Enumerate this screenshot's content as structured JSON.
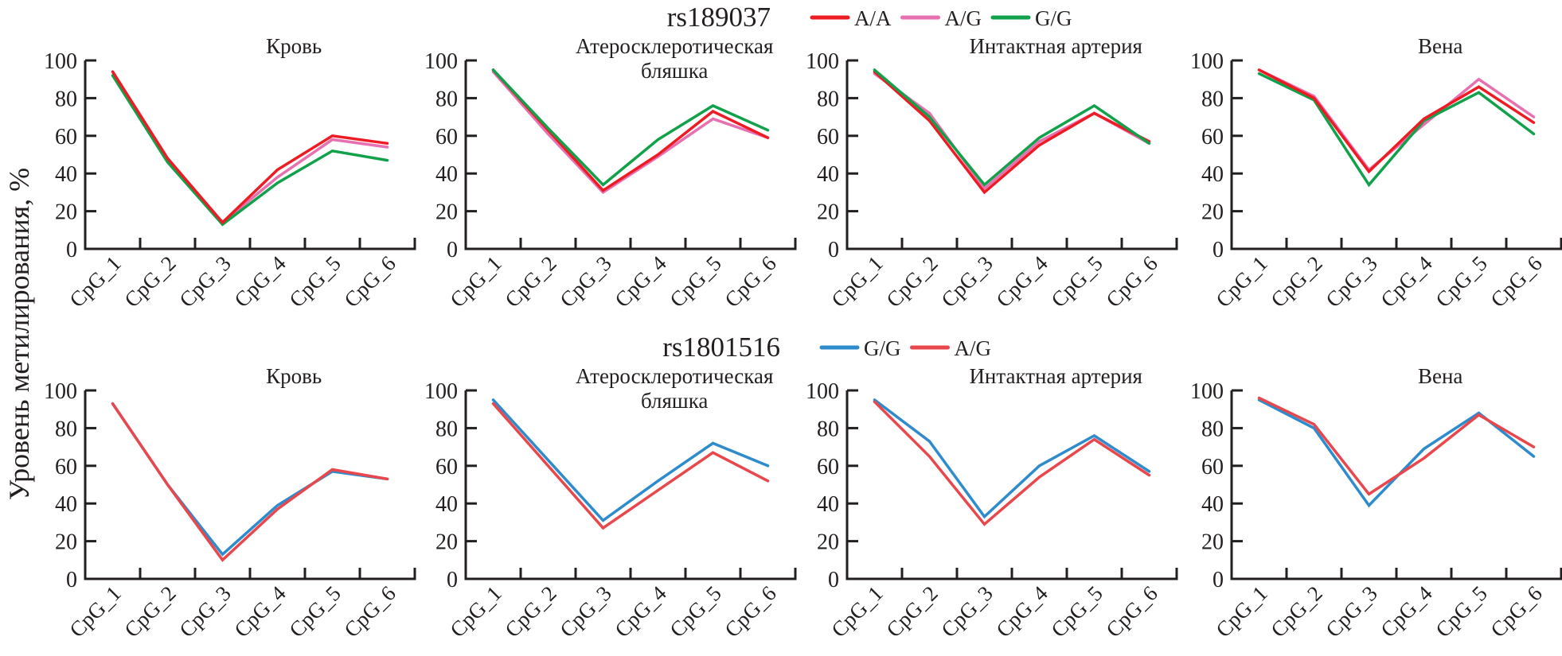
{
  "chart_data": {
    "type": "line",
    "ylabel": "Уровень метилирования, %",
    "ylim": [
      0,
      100
    ],
    "yticks": [
      0,
      20,
      40,
      60,
      80,
      100
    ],
    "categories": [
      "CpG_1",
      "CpG_2",
      "CpG_3",
      "CpG_4",
      "CpG_5",
      "CpG_6"
    ],
    "grid": false,
    "groups": [
      {
        "title": "rs189037",
        "legend": [
          {
            "name": "A/A",
            "color": "#ed1c24"
          },
          {
            "name": "A/G",
            "color": "#e770b0"
          },
          {
            "name": "G/G",
            "color": "#12a14b"
          }
        ],
        "panels": [
          {
            "title": [
              "Кровь"
            ],
            "series": [
              {
                "name": "A/G",
                "values": [
                  94,
                  48,
                  14,
                  38,
                  58,
                  54
                ]
              },
              {
                "name": "G/G",
                "values": [
                  92,
                  46,
                  13,
                  35,
                  52,
                  47
                ]
              },
              {
                "name": "A/A",
                "values": [
                  94,
                  48,
                  14,
                  42,
                  60,
                  56
                ]
              }
            ]
          },
          {
            "title": [
              "Атеросклеротическая",
              "бляшка"
            ],
            "series": [
              {
                "name": "A/G",
                "values": [
                  94,
                  61,
                  30,
                  49,
                  69,
                  59
                ]
              },
              {
                "name": "A/A",
                "values": [
                  95,
                  63,
                  31,
                  50,
                  73,
                  59
                ]
              },
              {
                "name": "G/G",
                "values": [
                  95,
                  64,
                  34,
                  58,
                  76,
                  63
                ]
              }
            ]
          },
          {
            "title": [
              "Интактная артерия"
            ],
            "series": [
              {
                "name": "A/G",
                "values": [
                  93,
                  72,
                  32,
                  57,
                  72,
                  56
                ]
              },
              {
                "name": "A/A",
                "values": [
                  94,
                  68,
                  30,
                  55,
                  72,
                  57
                ]
              },
              {
                "name": "G/G",
                "values": [
                  95,
                  70,
                  34,
                  59,
                  76,
                  56
                ]
              }
            ]
          },
          {
            "title": [
              "Вена"
            ],
            "series": [
              {
                "name": "A/G",
                "values": [
                  95,
                  81,
                  42,
                  66,
                  90,
                  70
                ]
              },
              {
                "name": "G/G",
                "values": [
                  93,
                  79,
                  34,
                  68,
                  83,
                  61
                ]
              },
              {
                "name": "A/A",
                "values": [
                  95,
                  80,
                  41,
                  69,
                  86,
                  67
                ]
              }
            ]
          }
        ]
      },
      {
        "title": "rs1801516",
        "legend": [
          {
            "name": "G/G",
            "color": "#2e8bcc"
          },
          {
            "name": "A/G",
            "color": "#e8474c"
          }
        ],
        "panels": [
          {
            "title": [
              "Кровь"
            ],
            "series": [
              {
                "name": "G/G",
                "values": [
                  93,
                  50,
                  13,
                  39,
                  57,
                  53
                ]
              },
              {
                "name": "A/G",
                "values": [
                  93,
                  50,
                  10,
                  37,
                  58,
                  53
                ]
              }
            ]
          },
          {
            "title": [
              "Атеросклеротическая",
              "бляшка"
            ],
            "series": [
              {
                "name": "G/G",
                "values": [
                  95,
                  63,
                  31,
                  52,
                  72,
                  60
                ]
              },
              {
                "name": "A/G",
                "values": [
                  93,
                  60,
                  27,
                  47,
                  67,
                  52
                ]
              }
            ]
          },
          {
            "title": [
              "Интактная артерия"
            ],
            "series": [
              {
                "name": "G/G",
                "values": [
                  95,
                  73,
                  33,
                  60,
                  76,
                  57
                ]
              },
              {
                "name": "A/G",
                "values": [
                  94,
                  65,
                  29,
                  54,
                  74,
                  55
                ]
              }
            ]
          },
          {
            "title": [
              "Вена"
            ],
            "series": [
              {
                "name": "G/G",
                "values": [
                  95,
                  80,
                  39,
                  69,
                  88,
                  65
                ]
              },
              {
                "name": "A/G",
                "values": [
                  96,
                  82,
                  45,
                  64,
                  87,
                  70
                ]
              }
            ]
          }
        ]
      }
    ]
  }
}
